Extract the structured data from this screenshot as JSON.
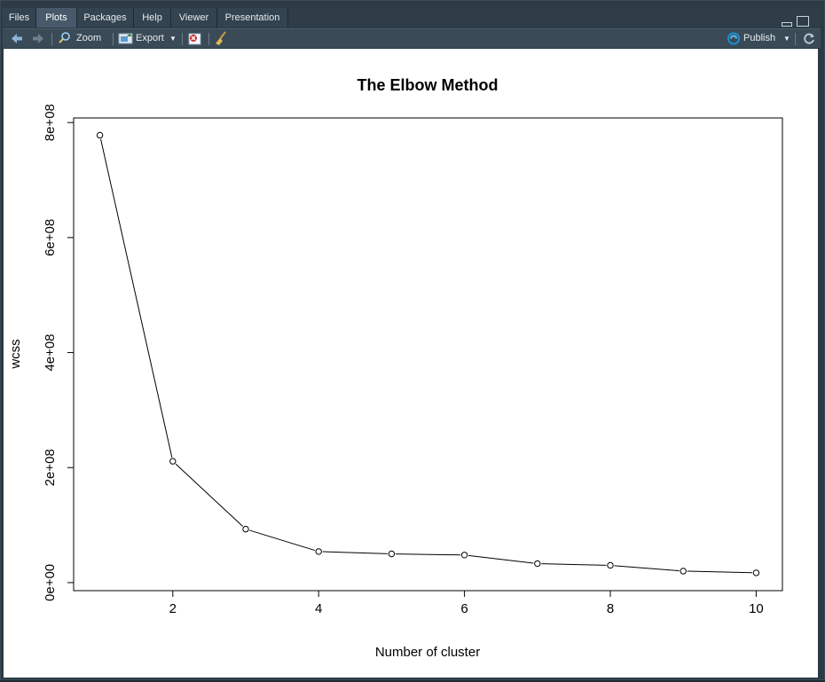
{
  "tabs": [
    {
      "label": "Files",
      "active": false
    },
    {
      "label": "Plots",
      "active": true
    },
    {
      "label": "Packages",
      "active": false
    },
    {
      "label": "Help",
      "active": false
    },
    {
      "label": "Viewer",
      "active": false
    },
    {
      "label": "Presentation",
      "active": false
    }
  ],
  "toolbar": {
    "zoom_label": "Zoom",
    "export_label": "Export",
    "publish_label": "Publish",
    "icons": [
      "back-arrow-icon",
      "forward-arrow-icon",
      "zoom-icon",
      "export-icon",
      "remove-plot-icon",
      "broom-icon",
      "publish-icon",
      "refresh-icon"
    ]
  },
  "colors": {
    "chrome": "#2b3a44",
    "accent": "#1a8fd6"
  },
  "chart_data": {
    "type": "line",
    "title": "The Elbow Method",
    "xlabel": "Number of cluster",
    "ylabel": "wcss",
    "x": [
      1,
      2,
      3,
      4,
      5,
      6,
      7,
      8,
      9,
      10
    ],
    "values": [
      778000000,
      211000000,
      93000000,
      54000000,
      50000000,
      48000000,
      33000000,
      30000000,
      20000000,
      17000000
    ],
    "xticks": [
      2,
      4,
      6,
      8,
      10
    ],
    "yticks": [
      0,
      200000000,
      400000000,
      600000000,
      800000000
    ],
    "yticklabels": [
      "0e+00",
      "2e+08",
      "4e+08",
      "6e+08",
      "8e+08"
    ],
    "xlim": [
      0.64,
      10.36
    ],
    "ylim": [
      -14000000,
      808000000
    ],
    "markers": "open-circle",
    "grid": false,
    "legend": "none"
  }
}
